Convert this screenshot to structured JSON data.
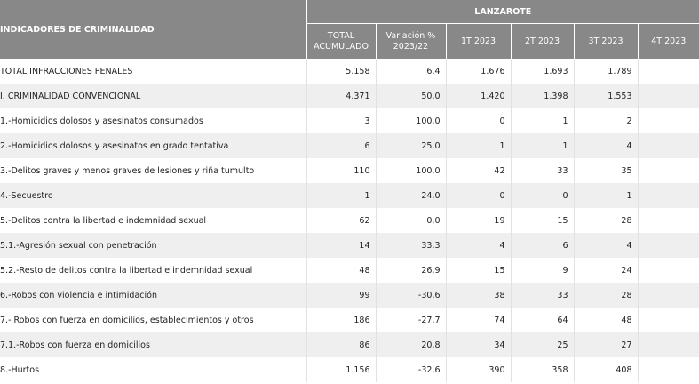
{
  "header": {
    "indicator_title": "INDICADORES DE CRIMINALIDAD",
    "region": "LANZAROTE",
    "columns": [
      "TOTAL ACUMULADO",
      "Variación % 2023/22",
      "1T 2023",
      "2T 2023",
      "3T 2023",
      "4T 2023"
    ]
  },
  "rows": [
    {
      "label": "TOTAL INFRACCIONES PENALES",
      "total": "5.158",
      "var": "6,4",
      "t1": "1.676",
      "t2": "1.693",
      "t3": "1.789",
      "t4": ""
    },
    {
      "label": "I. CRIMINALIDAD CONVENCIONAL",
      "total": "4.371",
      "var": "50,0",
      "t1": "1.420",
      "t2": "1.398",
      "t3": "1.553",
      "t4": ""
    },
    {
      "label": "1.-Homicidios dolosos y asesinatos consumados",
      "total": "3",
      "var": "100,0",
      "t1": "0",
      "t2": "1",
      "t3": "2",
      "t4": ""
    },
    {
      "label": "2.-Homicidios dolosos y asesinatos en grado tentativa",
      "total": "6",
      "var": "25,0",
      "t1": "1",
      "t2": "1",
      "t3": "4",
      "t4": ""
    },
    {
      "label": "3.-Delitos graves y menos graves de lesiones y riña tumulto",
      "total": "110",
      "var": "100,0",
      "t1": "42",
      "t2": "33",
      "t3": "35",
      "t4": ""
    },
    {
      "label": "4.-Secuestro",
      "total": "1",
      "var": "24,0",
      "t1": "0",
      "t2": "0",
      "t3": "1",
      "t4": ""
    },
    {
      "label": "5.-Delitos contra la libertad e indemnidad sexual",
      "total": "62",
      "var": "0,0",
      "t1": "19",
      "t2": "15",
      "t3": "28",
      "t4": ""
    },
    {
      "label": "5.1.-Agresión sexual con penetración",
      "total": "14",
      "var": "33,3",
      "t1": "4",
      "t2": "6",
      "t3": "4",
      "t4": ""
    },
    {
      "label": "5.2.-Resto de delitos contra la libertad e indemnidad sexual",
      "total": "48",
      "var": "26,9",
      "t1": "15",
      "t2": "9",
      "t3": "24",
      "t4": ""
    },
    {
      "label": "6.-Robos con violencia e intimidación",
      "total": "99",
      "var": "-30,6",
      "t1": "38",
      "t2": "33",
      "t3": "28",
      "t4": ""
    },
    {
      "label": "7.- Robos con fuerza en domicilios, establecimientos y otros",
      "total": "186",
      "var": "-27,7",
      "t1": "74",
      "t2": "64",
      "t3": "48",
      "t4": ""
    },
    {
      "label": "7.1.-Robos con fuerza en domicilios",
      "total": "86",
      "var": "20,8",
      "t1": "34",
      "t2": "25",
      "t3": "27",
      "t4": ""
    },
    {
      "label": "8.-Hurtos",
      "total": "1.156",
      "var": "-32,6",
      "t1": "390",
      "t2": "358",
      "t3": "408",
      "t4": ""
    }
  ]
}
